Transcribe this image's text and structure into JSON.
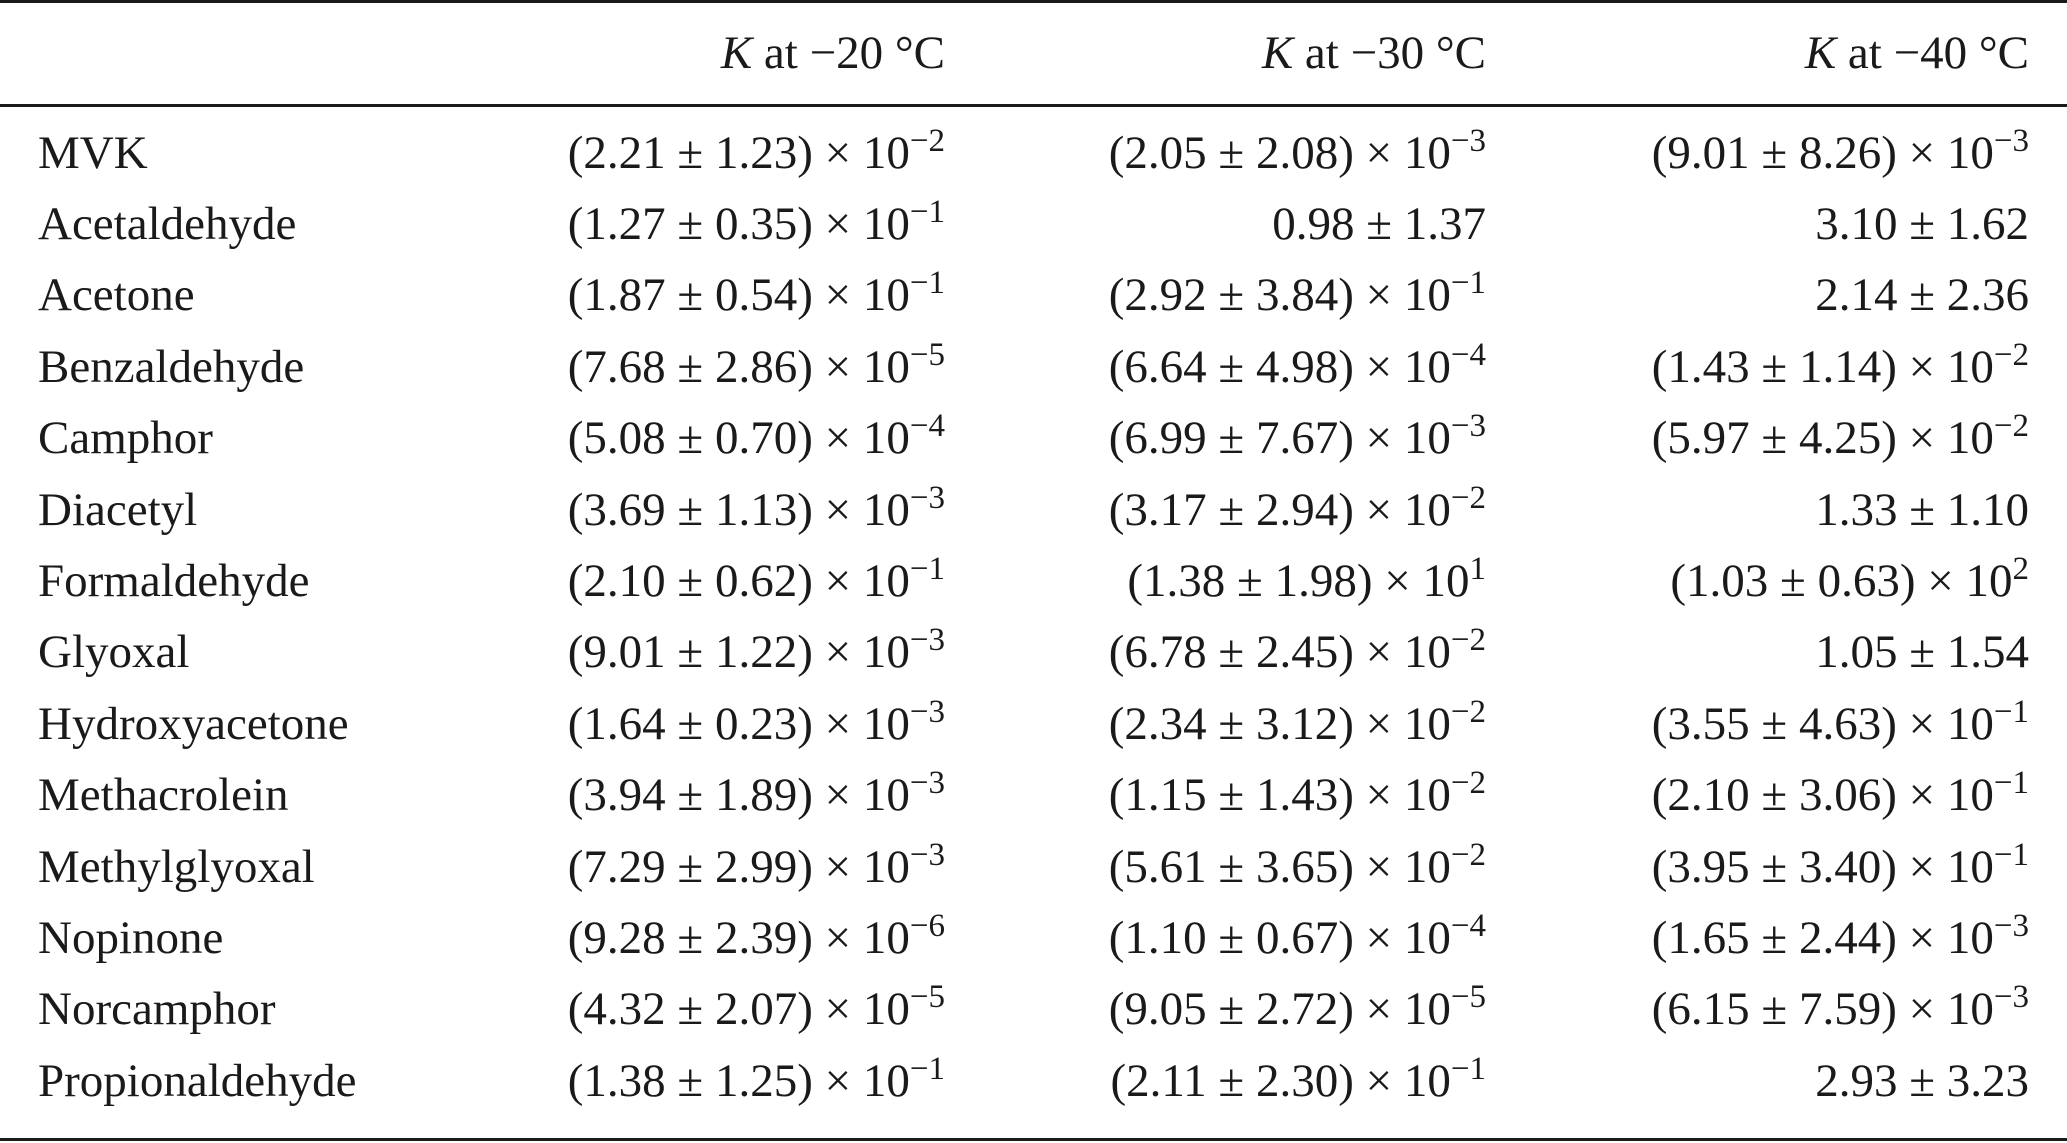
{
  "table": {
    "headers": [
      {
        "symbol": "K",
        "text": " at −20 °C"
      },
      {
        "symbol": "K",
        "text": " at −30 °C"
      },
      {
        "symbol": "K",
        "text": " at −40 °C"
      }
    ],
    "rows": [
      {
        "name": "MVK",
        "cells": [
          {
            "base": "(2.21 ± 1.23) × 10",
            "exp": "−2"
          },
          {
            "base": "(2.05 ± 2.08) × 10",
            "exp": "−3"
          },
          {
            "base": "(9.01 ± 8.26) × 10",
            "exp": "−3"
          }
        ]
      },
      {
        "name": "Acetaldehyde",
        "cells": [
          {
            "base": "(1.27 ± 0.35) × 10",
            "exp": "−1"
          },
          {
            "base": "0.98 ± 1.37",
            "exp": ""
          },
          {
            "base": "3.10 ± 1.62",
            "exp": ""
          }
        ]
      },
      {
        "name": "Acetone",
        "cells": [
          {
            "base": "(1.87 ± 0.54) × 10",
            "exp": "−1"
          },
          {
            "base": "(2.92 ± 3.84) × 10",
            "exp": "−1"
          },
          {
            "base": "2.14 ± 2.36",
            "exp": ""
          }
        ]
      },
      {
        "name": "Benzaldehyde",
        "cells": [
          {
            "base": "(7.68 ± 2.86) × 10",
            "exp": "−5"
          },
          {
            "base": "(6.64 ± 4.98) × 10",
            "exp": "−4"
          },
          {
            "base": "(1.43 ± 1.14) × 10",
            "exp": "−2"
          }
        ]
      },
      {
        "name": "Camphor",
        "cells": [
          {
            "base": "(5.08 ± 0.70) × 10",
            "exp": "−4"
          },
          {
            "base": "(6.99 ± 7.67) × 10",
            "exp": "−3"
          },
          {
            "base": "(5.97 ± 4.25) × 10",
            "exp": "−2"
          }
        ]
      },
      {
        "name": "Diacetyl",
        "cells": [
          {
            "base": "(3.69 ± 1.13) × 10",
            "exp": "−3"
          },
          {
            "base": "(3.17 ± 2.94) × 10",
            "exp": "−2"
          },
          {
            "base": "1.33 ± 1.10",
            "exp": ""
          }
        ]
      },
      {
        "name": "Formaldehyde",
        "cells": [
          {
            "base": "(2.10 ± 0.62) × 10",
            "exp": "−1"
          },
          {
            "base": "(1.38 ± 1.98) × 10",
            "exp": "1"
          },
          {
            "base": "(1.03 ± 0.63) × 10",
            "exp": "2"
          }
        ]
      },
      {
        "name": "Glyoxal",
        "cells": [
          {
            "base": "(9.01 ± 1.22) × 10",
            "exp": "−3"
          },
          {
            "base": "(6.78 ± 2.45) × 10",
            "exp": "−2"
          },
          {
            "base": "1.05 ± 1.54",
            "exp": ""
          }
        ]
      },
      {
        "name": "Hydroxyacetone",
        "cells": [
          {
            "base": "(1.64 ± 0.23) × 10",
            "exp": "−3"
          },
          {
            "base": "(2.34 ± 3.12) × 10",
            "exp": "−2"
          },
          {
            "base": "(3.55 ± 4.63) × 10",
            "exp": "−1"
          }
        ]
      },
      {
        "name": "Methacrolein",
        "cells": [
          {
            "base": "(3.94 ± 1.89) × 10",
            "exp": "−3"
          },
          {
            "base": "(1.15 ± 1.43) × 10",
            "exp": "−2"
          },
          {
            "base": "(2.10 ± 3.06) × 10",
            "exp": "−1"
          }
        ]
      },
      {
        "name": "Methylglyoxal",
        "cells": [
          {
            "base": "(7.29 ± 2.99) × 10",
            "exp": "−3"
          },
          {
            "base": "(5.61 ± 3.65) × 10",
            "exp": "−2"
          },
          {
            "base": "(3.95 ± 3.40) × 10",
            "exp": "−1"
          }
        ]
      },
      {
        "name": "Nopinone",
        "cells": [
          {
            "base": "(9.28 ± 2.39) × 10",
            "exp": "−6"
          },
          {
            "base": "(1.10 ± 0.67) × 10",
            "exp": "−4"
          },
          {
            "base": "(1.65 ± 2.44) × 10",
            "exp": "−3"
          }
        ]
      },
      {
        "name": "Norcamphor",
        "cells": [
          {
            "base": "(4.32 ± 2.07) × 10",
            "exp": "−5"
          },
          {
            "base": "(9.05 ± 2.72) × 10",
            "exp": "−5"
          },
          {
            "base": "(6.15 ± 7.59) × 10",
            "exp": "−3"
          }
        ]
      },
      {
        "name": "Propionaldehyde",
        "cells": [
          {
            "base": "(1.38 ± 1.25) × 10",
            "exp": "−1"
          },
          {
            "base": "(2.11 ± 2.30) × 10",
            "exp": "−1"
          },
          {
            "base": "2.93 ± 3.23",
            "exp": ""
          }
        ]
      }
    ]
  }
}
